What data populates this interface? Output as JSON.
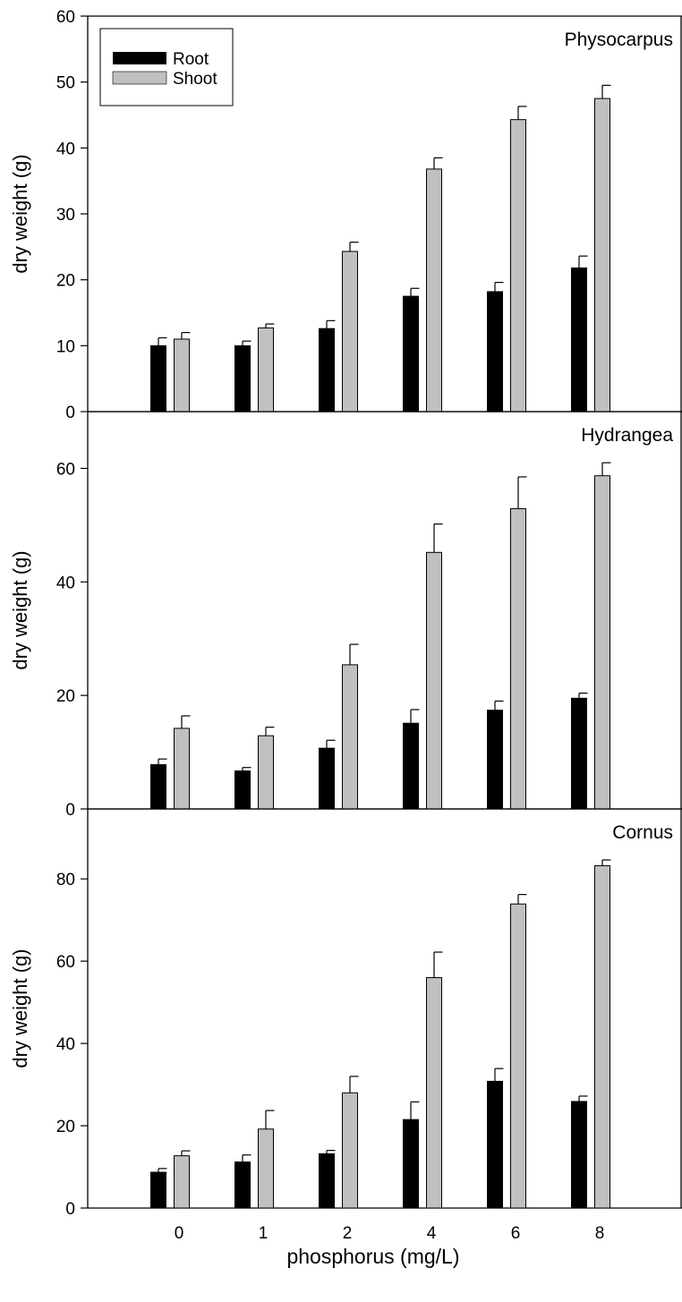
{
  "xlabel": "phosphorus (mg/L)",
  "legend": {
    "entries": [
      {
        "label": "Root",
        "color": "#000000"
      },
      {
        "label": "Shoot",
        "color": "#c0c0c0"
      }
    ],
    "placement": "top-left"
  },
  "chart_data": [
    {
      "type": "bar",
      "title": "Physocarpus",
      "ylabel": "dry weight (g)",
      "categories": [
        "0",
        "1",
        "2",
        "4",
        "6",
        "8"
      ],
      "ylim": [
        0,
        60
      ],
      "yticks": [
        0,
        10,
        20,
        30,
        40,
        50,
        60
      ],
      "series": [
        {
          "name": "Root",
          "color": "#000000",
          "values": [
            10.0,
            10.0,
            12.6,
            17.5,
            18.2,
            21.8
          ],
          "errors": [
            1.2,
            0.7,
            1.2,
            1.2,
            1.4,
            1.8
          ]
        },
        {
          "name": "Shoot",
          "color": "#c0c0c0",
          "values": [
            11.0,
            12.7,
            24.3,
            36.8,
            44.3,
            47.5
          ],
          "errors": [
            1.0,
            0.6,
            1.4,
            1.7,
            2.0,
            2.0
          ]
        }
      ]
    },
    {
      "type": "bar",
      "title": "Hydrangea",
      "ylabel": "dry weight (g)",
      "categories": [
        "0",
        "1",
        "2",
        "4",
        "6",
        "8"
      ],
      "ylim": [
        0,
        70
      ],
      "yticks": [
        0,
        20,
        40,
        60
      ],
      "series": [
        {
          "name": "Root",
          "color": "#000000",
          "values": [
            7.8,
            6.7,
            10.7,
            15.1,
            17.4,
            19.5
          ],
          "errors": [
            1.0,
            0.6,
            1.4,
            2.4,
            1.6,
            0.9
          ]
        },
        {
          "name": "Shoot",
          "color": "#c0c0c0",
          "values": [
            14.2,
            12.9,
            25.4,
            45.2,
            52.9,
            58.7
          ],
          "errors": [
            2.2,
            1.5,
            3.6,
            5.0,
            5.6,
            2.3
          ]
        }
      ]
    },
    {
      "type": "bar",
      "title": "Cornus",
      "ylabel": "dry weight (g)",
      "categories": [
        "0",
        "1",
        "2",
        "4",
        "6",
        "8"
      ],
      "ylim": [
        0,
        97
      ],
      "yticks": [
        0,
        20,
        40,
        60,
        80
      ],
      "series": [
        {
          "name": "Root",
          "color": "#000000",
          "values": [
            8.7,
            11.2,
            13.2,
            21.5,
            30.8,
            25.9
          ],
          "errors": [
            0.9,
            1.7,
            0.8,
            4.3,
            3.1,
            1.3
          ]
        },
        {
          "name": "Shoot",
          "color": "#c0c0c0",
          "values": [
            12.7,
            19.2,
            28.0,
            56.0,
            73.9,
            83.2
          ],
          "errors": [
            1.2,
            4.5,
            4.0,
            6.2,
            2.3,
            1.4
          ]
        }
      ]
    }
  ]
}
